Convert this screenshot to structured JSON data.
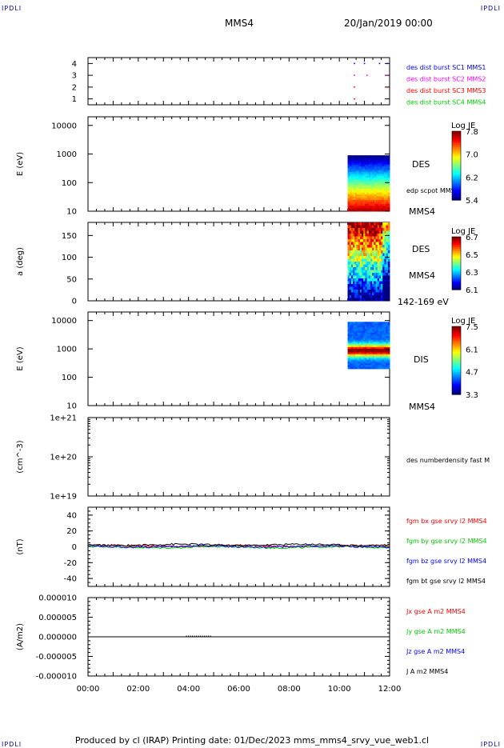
{
  "header": {
    "corner_tl": "IPDLI",
    "corner_tr": "IPDLI",
    "corner_bl": "IPDLI",
    "corner_br": "IPDLI",
    "spacecraft": "MMS4",
    "datetime": "20/Jan/2019 00:00"
  },
  "footer": {
    "text": "Produced by cl (IRAP)   Printing date: 01/Dec/2023   mms_mms4_srvy_vue_web1.cl"
  },
  "colors": {
    "blue": "#0000ff",
    "magenta": "#ff00ff",
    "red": "#ff0000",
    "green": "#00cc00",
    "black": "#000000"
  },
  "chart_data": [
    {
      "type": "scatter",
      "panel": "availability",
      "yticks": [
        "1",
        "2",
        "3",
        "4"
      ],
      "ylim": [
        0.5,
        4.5
      ],
      "series": [
        {
          "name": "des dist burst SC1 MMS1",
          "color": "#0000ff",
          "points": [
            [
              10.6,
              4
            ],
            [
              11.0,
              4
            ],
            [
              11.6,
              4
            ],
            [
              11.9,
              4
            ]
          ]
        },
        {
          "name": "des dist burst SC2 MMS2",
          "color": "#ff00ff",
          "points": [
            [
              10.6,
              3
            ],
            [
              11.1,
              3
            ],
            [
              11.9,
              3
            ]
          ]
        },
        {
          "name": "des dist burst SC3 MMS3",
          "color": "#ff0000",
          "points": [
            [
              10.6,
              2
            ],
            [
              10.6,
              1
            ],
            [
              11.9,
              2
            ]
          ]
        },
        {
          "name": "des dist burst SC4 MMS4",
          "color": "#00cc00",
          "points": []
        }
      ]
    },
    {
      "type": "heatmap",
      "panel": "des-energy",
      "ylabel": "E (eV)",
      "yscale": "log",
      "ylim": [
        10,
        20000
      ],
      "yticks": [
        "10",
        "100",
        "1000",
        "10000"
      ],
      "label": "DES",
      "overlay_label": "edp scpot MMS4",
      "sc_label": "MMS4",
      "data_xrange": [
        10.33,
        12.0
      ],
      "data_yrange": [
        10,
        900
      ],
      "colorbar": {
        "title": "Log JE",
        "ticks": [
          "7.8",
          "7.0",
          "6.2",
          "5.4"
        ],
        "range": [
          5.4,
          7.8
        ]
      }
    },
    {
      "type": "heatmap",
      "panel": "des-pitch",
      "ylabel": "a (deg)",
      "ylim": [
        0,
        180
      ],
      "yticks": [
        "0",
        "50",
        "100",
        "150"
      ],
      "label": "DES",
      "sc_label": "MMS4",
      "energy_label": "142-169 eV",
      "data_xrange": [
        10.33,
        12.0
      ],
      "colorbar": {
        "title": "Log JE",
        "ticks": [
          "6.7",
          "6.5",
          "6.3",
          "6.1"
        ],
        "range": [
          6.1,
          6.7
        ]
      }
    },
    {
      "type": "heatmap",
      "panel": "dis-energy",
      "ylabel": "E (eV)",
      "yscale": "log",
      "ylim": [
        10,
        20000
      ],
      "yticks": [
        "10",
        "100",
        "1000",
        "10000"
      ],
      "label": "DIS",
      "sc_label": "MMS4",
      "data_xrange": [
        10.33,
        12.0
      ],
      "data_yrange": [
        200,
        9000
      ],
      "colorbar": {
        "title": "Log JE",
        "ticks": [
          "7.5",
          "6.1",
          "4.7",
          "3.3"
        ],
        "range": [
          3.3,
          7.5
        ]
      }
    },
    {
      "type": "line",
      "panel": "density",
      "ylabel": "(cm^-3)",
      "yscale": "log",
      "ylim": [
        1e+19,
        1e+21
      ],
      "yticks": [
        "1e+19",
        "1e+20",
        "1e+21"
      ],
      "series": [
        {
          "name": "des numberdensity fast M",
          "color": "#000000"
        }
      ]
    },
    {
      "type": "line",
      "panel": "magnetic-field",
      "ylabel": "(nT)",
      "ylim": [
        -50,
        50
      ],
      "yticks": [
        "-40",
        "-20",
        "0",
        "20",
        "40"
      ],
      "series": [
        {
          "name": "fgm bx gse srvy l2 MMS4",
          "color": "#ff0000"
        },
        {
          "name": "fgm by gse srvy l2 MMS4",
          "color": "#00cc00"
        },
        {
          "name": "fgm bz gse srvy l2 MMS4",
          "color": "#0000ff"
        },
        {
          "name": "fgm bt gse srvy l2 MMS4",
          "color": "#000000"
        }
      ]
    },
    {
      "type": "line",
      "panel": "current-density",
      "ylabel": "(A/m2)",
      "ylim": [
        -1e-05,
        1e-05
      ],
      "yticks": [
        "-0.000010",
        "-0.000005",
        "0.000000",
        "0.000005",
        "0.000010"
      ],
      "series": [
        {
          "name": "Jx gse A m2 MMS4",
          "color": "#ff0000"
        },
        {
          "name": "Jy gse A m2 MMS4",
          "color": "#00cc00"
        },
        {
          "name": "Jz gse A m2 MMS4",
          "color": "#0000ff"
        },
        {
          "name": "J A m2 MMS4",
          "color": "#000000"
        }
      ]
    }
  ],
  "x_axis": {
    "range_hours": [
      0,
      12
    ],
    "ticks": [
      "00:00",
      "02:00",
      "04:00",
      "06:00",
      "08:00",
      "10:00",
      "12:00"
    ]
  }
}
